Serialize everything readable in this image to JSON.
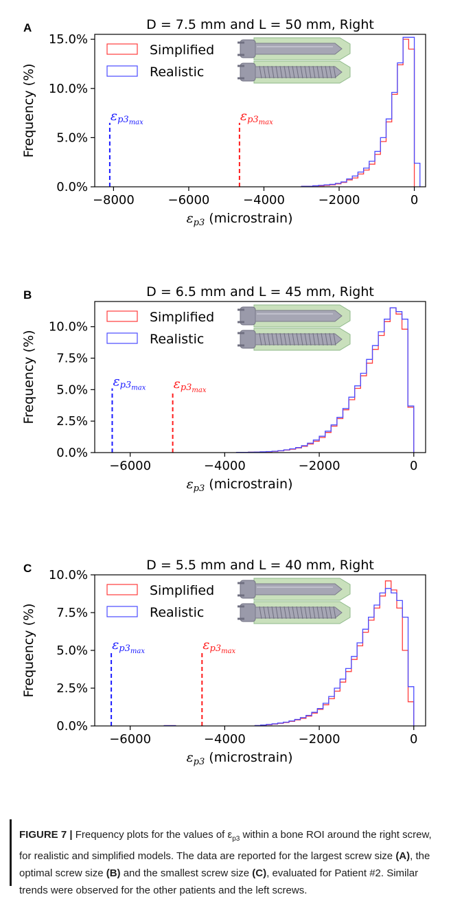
{
  "colors": {
    "simplified": "#ff3b3b",
    "realistic": "#4a4aff",
    "blue_marker": "#1a1aff",
    "red_marker": "#ff1a1a"
  },
  "chart_data": [
    {
      "type": "histogram",
      "panel": "A",
      "title": "D = 7.5 mm and L = 50 mm, Right",
      "xlabel_var": "ε",
      "xlabel_sub": "p3",
      "xlabel_unit": "(microstrain)",
      "ylabel": "Frequency (%)",
      "xlim": [
        -8500,
        300
      ],
      "ylim": [
        0,
        15.5
      ],
      "xticks": [
        -8000,
        -6000,
        -4000,
        -2000,
        0
      ],
      "xtick_labels": [
        "−8000",
        "−6000",
        "−4000",
        "−2000",
        "0"
      ],
      "yticks": [
        0,
        5,
        10,
        15
      ],
      "ytick_labels": [
        "0.0%",
        "5.0%",
        "10.0%",
        "15.0%"
      ],
      "legend": [
        "Simplified",
        "Realistic"
      ],
      "bin_width": 150,
      "series": [
        {
          "name": "Simplified",
          "color_key": "simplified",
          "bins": [
            [
              -3000,
              0.05
            ],
            [
              -2850,
              0.05
            ],
            [
              -2700,
              0.1
            ],
            [
              -2550,
              0.1
            ],
            [
              -2400,
              0.15
            ],
            [
              -2250,
              0.2
            ],
            [
              -2100,
              0.3
            ],
            [
              -1950,
              0.45
            ],
            [
              -1800,
              0.7
            ],
            [
              -1650,
              0.9
            ],
            [
              -1500,
              1.3
            ],
            [
              -1350,
              1.7
            ],
            [
              -1200,
              2.3
            ],
            [
              -1050,
              3.3
            ],
            [
              -900,
              4.6
            ],
            [
              -750,
              6.6
            ],
            [
              -600,
              9.4
            ],
            [
              -450,
              12.4
            ],
            [
              -300,
              15.0
            ],
            [
              -150,
              14.0
            ]
          ]
        },
        {
          "name": "Realistic",
          "color_key": "realistic",
          "bins": [
            [
              -3000,
              0.05
            ],
            [
              -2850,
              0.05
            ],
            [
              -2700,
              0.1
            ],
            [
              -2550,
              0.15
            ],
            [
              -2400,
              0.2
            ],
            [
              -2250,
              0.25
            ],
            [
              -2100,
              0.35
            ],
            [
              -1950,
              0.5
            ],
            [
              -1800,
              0.8
            ],
            [
              -1650,
              1.1
            ],
            [
              -1500,
              1.5
            ],
            [
              -1350,
              1.9
            ],
            [
              -1200,
              2.6
            ],
            [
              -1050,
              3.6
            ],
            [
              -900,
              5.0
            ],
            [
              -750,
              6.9
            ],
            [
              -600,
              9.6
            ],
            [
              -450,
              12.6
            ],
            [
              -300,
              15.2
            ],
            [
              -150,
              15.2
            ],
            [
              0,
              2.4
            ]
          ]
        }
      ],
      "markers": [
        {
          "x": -8100,
          "height": 6.5,
          "color_key": "blue_marker",
          "label_var": "ε",
          "label_sub": "p3",
          "label_subsub": "max"
        },
        {
          "x": -4650,
          "height": 6.5,
          "color_key": "red_marker",
          "label_var": "ε",
          "label_sub": "p3",
          "label_subsub": "max"
        }
      ]
    },
    {
      "type": "histogram",
      "panel": "B",
      "title": "D = 6.5 mm and L = 45 mm, Right",
      "xlabel_var": "ε",
      "xlabel_sub": "p3",
      "xlabel_unit": "(microstrain)",
      "ylabel": "Frequency (%)",
      "xlim": [
        -6750,
        250
      ],
      "ylim": [
        0,
        12.0
      ],
      "xticks": [
        -6000,
        -4000,
        -2000,
        0
      ],
      "xtick_labels": [
        "−6000",
        "−4000",
        "−2000",
        "0"
      ],
      "yticks": [
        0,
        2.5,
        5,
        7.5,
        10
      ],
      "ytick_labels": [
        "0.0%",
        "2.5%",
        "5.0%",
        "7.5%",
        "10.0%"
      ],
      "legend": [
        "Simplified",
        "Realistic"
      ],
      "bin_width": 125,
      "series": [
        {
          "name": "Simplified",
          "color_key": "simplified",
          "bins": [
            [
              -3750,
              0.02
            ],
            [
              -3625,
              0.02
            ],
            [
              -3500,
              0.03
            ],
            [
              -3375,
              0.04
            ],
            [
              -3250,
              0.05
            ],
            [
              -3125,
              0.07
            ],
            [
              -3000,
              0.1
            ],
            [
              -2875,
              0.14
            ],
            [
              -2750,
              0.2
            ],
            [
              -2625,
              0.27
            ],
            [
              -2500,
              0.37
            ],
            [
              -2375,
              0.5
            ],
            [
              -2250,
              0.68
            ],
            [
              -2125,
              0.9
            ],
            [
              -2000,
              1.2
            ],
            [
              -1875,
              1.6
            ],
            [
              -1750,
              2.1
            ],
            [
              -1625,
              2.7
            ],
            [
              -1500,
              3.4
            ],
            [
              -1375,
              4.2
            ],
            [
              -1250,
              5.1
            ],
            [
              -1125,
              6.1
            ],
            [
              -1000,
              7.1
            ],
            [
              -875,
              8.2
            ],
            [
              -750,
              9.3
            ],
            [
              -625,
              10.4
            ],
            [
              -500,
              11.5
            ],
            [
              -375,
              11.0
            ],
            [
              -250,
              9.8
            ],
            [
              -125,
              3.6
            ]
          ]
        },
        {
          "name": "Realistic",
          "color_key": "realistic",
          "bins": [
            [
              -3750,
              0.02
            ],
            [
              -3625,
              0.02
            ],
            [
              -3500,
              0.03
            ],
            [
              -3375,
              0.04
            ],
            [
              -3250,
              0.06
            ],
            [
              -3125,
              0.08
            ],
            [
              -3000,
              0.11
            ],
            [
              -2875,
              0.15
            ],
            [
              -2750,
              0.22
            ],
            [
              -2625,
              0.3
            ],
            [
              -2500,
              0.4
            ],
            [
              -2375,
              0.55
            ],
            [
              -2250,
              0.75
            ],
            [
              -2125,
              1.0
            ],
            [
              -2000,
              1.3
            ],
            [
              -1875,
              1.7
            ],
            [
              -1750,
              2.2
            ],
            [
              -1625,
              2.8
            ],
            [
              -1500,
              3.5
            ],
            [
              -1375,
              4.4
            ],
            [
              -1250,
              5.3
            ],
            [
              -1125,
              6.3
            ],
            [
              -1000,
              7.4
            ],
            [
              -875,
              8.5
            ],
            [
              -750,
              9.6
            ],
            [
              -625,
              10.6
            ],
            [
              -500,
              11.5
            ],
            [
              -375,
              11.2
            ],
            [
              -250,
              10.6
            ],
            [
              -125,
              3.7
            ]
          ]
        }
      ],
      "markers": [
        {
          "x": -6380,
          "height": 5.1,
          "color_key": "blue_marker",
          "label_var": "ε",
          "label_sub": "p3",
          "label_subsub": "max"
        },
        {
          "x": -5100,
          "height": 4.9,
          "color_key": "red_marker",
          "label_var": "ε",
          "label_sub": "p3",
          "label_subsub": "max"
        }
      ]
    },
    {
      "type": "histogram",
      "panel": "C",
      "title": "D = 5.5 mm and L = 40 mm, Right",
      "xlabel_var": "ε",
      "xlabel_sub": "p3",
      "xlabel_unit": "(microstrain)",
      "ylabel": "Frequency (%)",
      "xlim": [
        -6750,
        250
      ],
      "ylim": [
        0,
        10.0
      ],
      "xticks": [
        -6000,
        -4000,
        -2000,
        0
      ],
      "xtick_labels": [
        "−6000",
        "−4000",
        "−2000",
        "0"
      ],
      "yticks": [
        0,
        2.5,
        5,
        7.5,
        10
      ],
      "ytick_labels": [
        "0.0%",
        "2.5%",
        "5.0%",
        "7.5%",
        "10.0%"
      ],
      "legend": [
        "Simplified",
        "Realistic"
      ],
      "bin_width": 120,
      "series": [
        {
          "name": "Simplified",
          "color_key": "simplified",
          "bins": [
            [
              -5280,
              0.02
            ],
            [
              -5160,
              0.02
            ],
            [
              -3360,
              0.02
            ],
            [
              -3240,
              0.05
            ],
            [
              -3120,
              0.08
            ],
            [
              -3000,
              0.12
            ],
            [
              -2880,
              0.17
            ],
            [
              -2760,
              0.23
            ],
            [
              -2640,
              0.3
            ],
            [
              -2520,
              0.4
            ],
            [
              -2400,
              0.5
            ],
            [
              -2280,
              0.65
            ],
            [
              -2160,
              0.85
            ],
            [
              -2040,
              1.1
            ],
            [
              -1920,
              1.4
            ],
            [
              -1800,
              1.8
            ],
            [
              -1680,
              2.3
            ],
            [
              -1560,
              2.9
            ],
            [
              -1440,
              3.6
            ],
            [
              -1320,
              4.4
            ],
            [
              -1200,
              5.3
            ],
            [
              -1080,
              6.2
            ],
            [
              -960,
              7.0
            ],
            [
              -840,
              7.8
            ],
            [
              -720,
              8.6
            ],
            [
              -600,
              9.6
            ],
            [
              -480,
              9.0
            ],
            [
              -360,
              7.8
            ],
            [
              -240,
              5.0
            ],
            [
              -120,
              1.6
            ]
          ]
        },
        {
          "name": "Realistic",
          "color_key": "realistic",
          "bins": [
            [
              -5280,
              0.02
            ],
            [
              -5160,
              0.02
            ],
            [
              -3360,
              0.03
            ],
            [
              -3240,
              0.06
            ],
            [
              -3120,
              0.1
            ],
            [
              -3000,
              0.14
            ],
            [
              -2880,
              0.19
            ],
            [
              -2760,
              0.25
            ],
            [
              -2640,
              0.33
            ],
            [
              -2520,
              0.43
            ],
            [
              -2400,
              0.55
            ],
            [
              -2280,
              0.7
            ],
            [
              -2160,
              0.9
            ],
            [
              -2040,
              1.15
            ],
            [
              -1920,
              1.5
            ],
            [
              -1800,
              1.95
            ],
            [
              -1680,
              2.5
            ],
            [
              -1560,
              3.1
            ],
            [
              -1440,
              3.8
            ],
            [
              -1320,
              4.6
            ],
            [
              -1200,
              5.5
            ],
            [
              -1080,
              6.4
            ],
            [
              -960,
              7.2
            ],
            [
              -840,
              8.0
            ],
            [
              -720,
              8.8
            ],
            [
              -600,
              9.1
            ],
            [
              -480,
              8.8
            ],
            [
              -360,
              8.3
            ],
            [
              -240,
              7.2
            ],
            [
              -120,
              2.6
            ]
          ]
        }
      ],
      "markers": [
        {
          "x": -6400,
          "height": 4.9,
          "color_key": "blue_marker",
          "label_var": "ε",
          "label_sub": "p3",
          "label_subsub": "max"
        },
        {
          "x": -4480,
          "height": 4.9,
          "color_key": "red_marker",
          "label_var": "ε",
          "label_sub": "p3",
          "label_subsub": "max"
        }
      ]
    }
  ],
  "caption": {
    "figure_label": "FIGURE 7 |",
    "text1": " Frequency plots for the values of ε",
    "text1_sub": "p3",
    "text2": " within a bone ROI around the right screw, for realistic and simplified models. The data are reported for the largest screw size ",
    "ref_a": "(A)",
    "text3": ", the optimal screw size ",
    "ref_b": "(B)",
    "text4": " and the smallest screw size ",
    "ref_c": "(C)",
    "text5": ", evaluated for Patient #2. Similar trends were observed for the other patients and the left screws."
  }
}
